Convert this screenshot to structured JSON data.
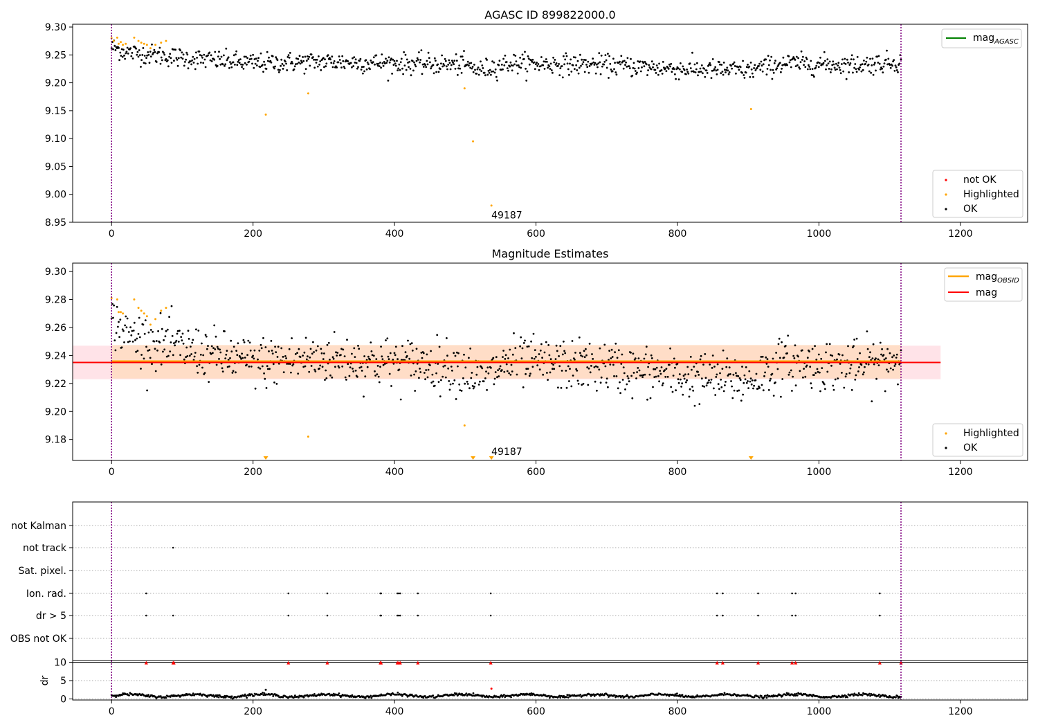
{
  "colors": {
    "ok": "#000000",
    "highlighted": "#ffa500",
    "not_ok": "#ff0000",
    "mag_agasc": "#008000",
    "mag_obsid": "#ffa500",
    "mag": "#ff0000",
    "band_outer": "#ffc0cb",
    "band_inner": "#ffdab9",
    "vline": "#800080"
  },
  "chart_data": [
    {
      "type": "scatter",
      "title": "AGASC ID 899822000.0",
      "xlim": [
        -55,
        1295
      ],
      "ylim": [
        8.95,
        9.305
      ],
      "xticks": [
        0,
        200,
        400,
        600,
        800,
        1000,
        1200
      ],
      "yticks": [
        9.3,
        9.25,
        9.2,
        9.15,
        9.1,
        9.05,
        9.0,
        8.95
      ],
      "vlines": [
        0,
        1116
      ],
      "legend_lines": [
        {
          "name": "mag",
          "sub": "AGASC",
          "color_key": "mag_agasc"
        }
      ],
      "legend_markers": [
        {
          "name": "not OK",
          "color_key": "not_ok"
        },
        {
          "name": "Highlighted",
          "color_key": "highlighted"
        },
        {
          "name": "OK",
          "color_key": "ok"
        }
      ],
      "annotation": {
        "text": "49187",
        "x": 537,
        "y": 8.963
      },
      "ok_trend": [
        [
          0,
          9.265
        ],
        [
          20,
          9.255
        ],
        [
          60,
          9.25
        ],
        [
          100,
          9.245
        ],
        [
          150,
          9.24
        ],
        [
          200,
          9.235
        ],
        [
          300,
          9.238
        ],
        [
          400,
          9.235
        ],
        [
          500,
          9.232
        ],
        [
          520,
          9.222
        ],
        [
          560,
          9.235
        ],
        [
          700,
          9.232
        ],
        [
          800,
          9.225
        ],
        [
          900,
          9.222
        ],
        [
          950,
          9.235
        ],
        [
          1050,
          9.232
        ],
        [
          1116,
          9.238
        ]
      ],
      "ok_scatter": 0.009,
      "ok_count": 1000,
      "highlighted": [
        [
          0,
          9.28
        ],
        [
          3,
          9.275
        ],
        [
          8,
          9.281
        ],
        [
          10,
          9.27
        ],
        [
          13,
          9.273
        ],
        [
          16,
          9.268
        ],
        [
          20,
          9.27
        ],
        [
          32,
          9.281
        ],
        [
          38,
          9.275
        ],
        [
          42,
          9.272
        ],
        [
          46,
          9.27
        ],
        [
          50,
          9.268
        ],
        [
          55,
          9.262
        ],
        [
          62,
          9.268
        ],
        [
          70,
          9.272
        ],
        [
          77,
          9.275
        ],
        [
          218,
          9.143
        ],
        [
          278,
          9.181
        ],
        [
          499,
          9.19
        ],
        [
          511,
          9.095
        ],
        [
          904,
          9.153
        ]
      ],
      "not_ok": [
        [
          537,
          8.98
        ]
      ]
    },
    {
      "type": "scatter",
      "title": "Magnitude Estimates",
      "xlim": [
        -55,
        1295
      ],
      "ylim": [
        9.165,
        9.306
      ],
      "xticks": [
        0,
        200,
        400,
        600,
        800,
        1000,
        1200
      ],
      "yticks": [
        9.3,
        9.28,
        9.26,
        9.24,
        9.22,
        9.2,
        9.18
      ],
      "vlines": [
        0,
        1116
      ],
      "mag": 9.235,
      "mag_obsid": 9.236,
      "band_outer": [
        9.223,
        9.247
      ],
      "band_inner": [
        9.2235,
        9.2475
      ],
      "band_xlim": [
        -55,
        1172
      ],
      "legend_lines": [
        {
          "name": "mag",
          "sub": "OBSID",
          "color_key": "mag_obsid"
        },
        {
          "name": "mag",
          "sub": "",
          "color_key": "mag"
        }
      ],
      "legend_markers": [
        {
          "name": "Highlighted",
          "color_key": "highlighted"
        },
        {
          "name": "OK",
          "color_key": "ok"
        }
      ],
      "annotation": {
        "text": "49187",
        "x": 537,
        "y": 9.168
      },
      "ok_trend": [
        [
          0,
          9.265
        ],
        [
          20,
          9.255
        ],
        [
          60,
          9.25
        ],
        [
          100,
          9.245
        ],
        [
          150,
          9.24
        ],
        [
          200,
          9.235
        ],
        [
          300,
          9.238
        ],
        [
          400,
          9.235
        ],
        [
          500,
          9.232
        ],
        [
          520,
          9.222
        ],
        [
          560,
          9.235
        ],
        [
          700,
          9.232
        ],
        [
          800,
          9.225
        ],
        [
          900,
          9.222
        ],
        [
          950,
          9.235
        ],
        [
          1050,
          9.232
        ],
        [
          1116,
          9.238
        ]
      ],
      "ok_scatter": 0.009,
      "ok_count": 1000,
      "highlighted": [
        [
          0,
          9.281
        ],
        [
          8,
          9.28
        ],
        [
          10,
          9.271
        ],
        [
          13,
          9.271
        ],
        [
          16,
          9.27
        ],
        [
          32,
          9.28
        ],
        [
          38,
          9.274
        ],
        [
          42,
          9.272
        ],
        [
          46,
          9.27
        ],
        [
          50,
          9.268
        ],
        [
          55,
          9.262
        ],
        [
          62,
          9.266
        ],
        [
          70,
          9.272
        ],
        [
          77,
          9.274
        ],
        [
          278,
          9.182
        ],
        [
          499,
          9.19
        ]
      ],
      "clipped": [
        218,
        511,
        537,
        904
      ]
    },
    {
      "type": "scatter",
      "xlim": [
        -55,
        1295
      ],
      "xticks": [
        0,
        200,
        400,
        600,
        800,
        1000,
        1200
      ],
      "categories": [
        "not Kalman",
        "not track",
        "Sat. pixel.",
        "Ion. rad.",
        "dr > 5",
        "OBS not OK"
      ],
      "vlines": [
        0,
        1116
      ],
      "flags": {
        "not Kalman": [],
        "not track": [
          87
        ],
        "Sat. pixel.": [],
        "Ion. rad.": [
          49,
          250,
          305,
          380,
          381,
          404,
          406,
          408,
          433,
          536,
          856,
          864,
          914,
          962,
          967,
          1086
        ],
        "dr > 5": [
          49,
          87,
          250,
          305,
          380,
          381,
          404,
          406,
          408,
          433,
          536,
          856,
          864,
          914,
          962,
          967,
          1086
        ],
        "OBS not OK": []
      }
    },
    {
      "type": "scatter",
      "ylabel": "dr",
      "xlim": [
        -55,
        1295
      ],
      "ylim": [
        -0.3,
        10.5
      ],
      "xticks": [
        0,
        200,
        400,
        600,
        800,
        1000,
        1200
      ],
      "yticks": [
        10,
        5,
        0
      ],
      "vlines": [
        0,
        1116
      ],
      "hline": 10,
      "capped": [
        49,
        87,
        88,
        250,
        305,
        380,
        381,
        404,
        406,
        408,
        433,
        536,
        856,
        864,
        914,
        962,
        967,
        1086,
        1116
      ],
      "dr_points": [
        [
          218,
          2.5
        ],
        [
          537,
          2.8
        ]
      ],
      "dr_baseline": 0.9,
      "dr_scatter": 0.35
    }
  ]
}
